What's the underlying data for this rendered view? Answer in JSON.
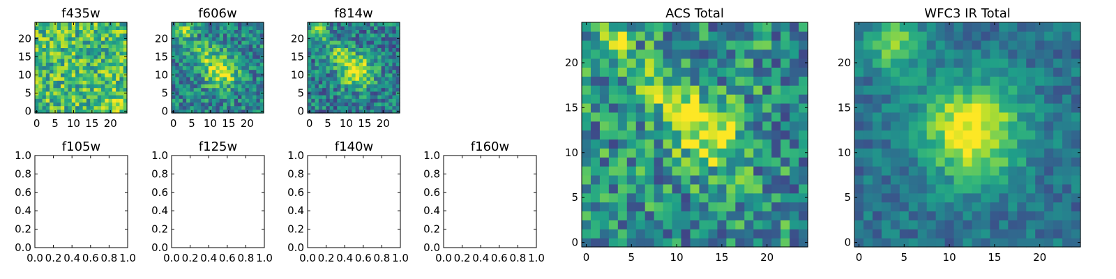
{
  "figure": {
    "background": "#ffffff",
    "colormap": "viridis",
    "image_size": 25
  },
  "chart_data": [
    {
      "id": "f435w",
      "type": "heatmap",
      "title": "f435w",
      "xticks": [
        "0",
        "5",
        "10",
        "15",
        "20"
      ],
      "yticks": [
        "0",
        "5",
        "10",
        "15",
        "20"
      ],
      "xlim": [
        -0.5,
        24.5
      ],
      "ylim": [
        -0.5,
        24.5
      ],
      "seed": 11,
      "blobs": [
        {
          "cx": 22,
          "cy": 2,
          "amp": 0.25,
          "s": 2
        }
      ],
      "base": 0.68,
      "noise": 0.28
    },
    {
      "id": "f606w",
      "type": "heatmap",
      "title": "f606w",
      "xticks": [
        "0",
        "5",
        "10",
        "15",
        "20"
      ],
      "yticks": [
        "0",
        "5",
        "10",
        "15",
        "20"
      ],
      "xlim": [
        -0.5,
        24.5
      ],
      "ylim": [
        -0.5,
        24.5
      ],
      "seed": 23,
      "blobs": [
        {
          "cx": 13,
          "cy": 11,
          "amp": 0.55,
          "s": 3
        },
        {
          "cx": 3,
          "cy": 22,
          "amp": 0.45,
          "s": 1.5
        },
        {
          "cx": 8,
          "cy": 16,
          "amp": 0.3,
          "s": 2.5
        }
      ],
      "base": 0.45,
      "noise": 0.25
    },
    {
      "id": "f814w",
      "type": "heatmap",
      "title": "f814w",
      "xticks": [
        "0",
        "5",
        "10",
        "15",
        "20"
      ],
      "yticks": [
        "0",
        "5",
        "10",
        "15",
        "20"
      ],
      "xlim": [
        -0.5,
        24.5
      ],
      "ylim": [
        -0.5,
        24.5
      ],
      "seed": 37,
      "blobs": [
        {
          "cx": 13,
          "cy": 11,
          "amp": 0.6,
          "s": 3
        },
        {
          "cx": 3,
          "cy": 22,
          "amp": 0.5,
          "s": 1.5
        },
        {
          "cx": 8,
          "cy": 16,
          "amp": 0.3,
          "s": 2.5
        }
      ],
      "base": 0.42,
      "noise": 0.25
    },
    {
      "id": "f105w",
      "type": "heatmap",
      "title": "f105w",
      "xticks": [
        "0.0",
        "0.2",
        "0.4",
        "0.6",
        "0.8",
        "1.0"
      ],
      "yticks": [
        "0.0",
        "0.2",
        "0.4",
        "0.6",
        "0.8",
        "1.0"
      ],
      "xlim": [
        0,
        1
      ],
      "ylim": [
        0,
        1
      ],
      "empty": true
    },
    {
      "id": "f125w",
      "type": "heatmap",
      "title": "f125w",
      "xticks": [
        "0.0",
        "0.2",
        "0.4",
        "0.6",
        "0.8",
        "1.0"
      ],
      "yticks": [
        "0.0",
        "0.2",
        "0.4",
        "0.6",
        "0.8",
        "1.0"
      ],
      "xlim": [
        0,
        1
      ],
      "ylim": [
        0,
        1
      ],
      "empty": true
    },
    {
      "id": "f140w",
      "type": "heatmap",
      "title": "f140w",
      "xticks": [
        "0.0",
        "0.2",
        "0.4",
        "0.6",
        "0.8",
        "1.0"
      ],
      "yticks": [
        "0.0",
        "0.2",
        "0.4",
        "0.6",
        "0.8",
        "1.0"
      ],
      "xlim": [
        0,
        1
      ],
      "ylim": [
        0,
        1
      ],
      "empty": true
    },
    {
      "id": "f160w",
      "type": "heatmap",
      "title": "f160w",
      "xticks": [
        "0.0",
        "0.2",
        "0.4",
        "0.6",
        "0.8",
        "1.0"
      ],
      "yticks": [
        "0.0",
        "0.2",
        "0.4",
        "0.6",
        "0.8",
        "1.0"
      ],
      "xlim": [
        0,
        1
      ],
      "ylim": [
        0,
        1
      ],
      "empty": true
    },
    {
      "id": "acs",
      "type": "heatmap",
      "title": "ACS Total",
      "xticks": [
        "0",
        "5",
        "10",
        "15",
        "20"
      ],
      "yticks": [
        "0",
        "5",
        "10",
        "15",
        "20"
      ],
      "xlim": [
        -0.5,
        24.5
      ],
      "ylim": [
        -0.5,
        24.5
      ],
      "seed": 53,
      "blobs": [
        {
          "cx": 14,
          "cy": 11.5,
          "amp": 0.45,
          "s": 2.5
        },
        {
          "cx": 11,
          "cy": 14.5,
          "amp": 0.35,
          "s": 1.8
        },
        {
          "cx": 3,
          "cy": 22,
          "amp": 0.45,
          "s": 1.3
        },
        {
          "cx": 8,
          "cy": 18,
          "amp": 0.25,
          "s": 2
        }
      ],
      "base": 0.5,
      "noise": 0.3
    },
    {
      "id": "wfc3",
      "type": "heatmap",
      "title": "WFC3 IR Total",
      "xticks": [
        "0",
        "5",
        "10",
        "15",
        "20"
      ],
      "yticks": [
        "0",
        "5",
        "10",
        "15",
        "20"
      ],
      "xlim": [
        -0.5,
        24.5
      ],
      "ylim": [
        -0.5,
        24.5
      ],
      "seed": 71,
      "blobs": [
        {
          "cx": 12.5,
          "cy": 12.5,
          "amp": 0.65,
          "s": 3.8
        },
        {
          "cx": 4,
          "cy": 22,
          "amp": 0.4,
          "s": 2.2
        }
      ],
      "base": 0.38,
      "noise": 0.14
    }
  ]
}
